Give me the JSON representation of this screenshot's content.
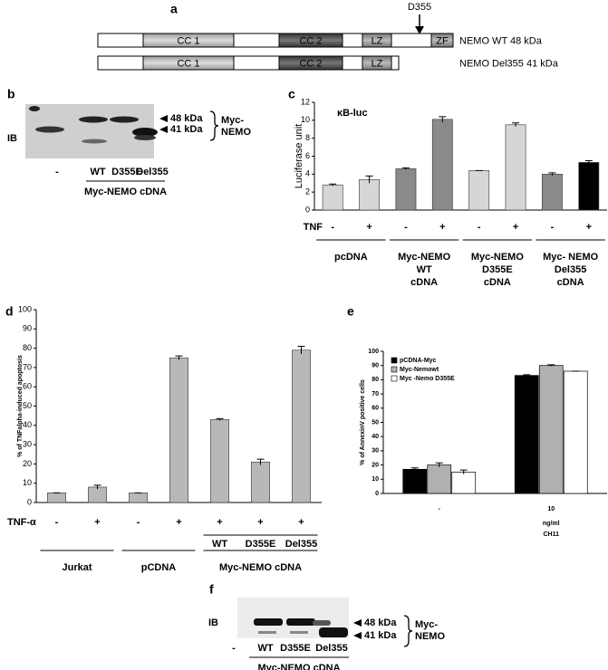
{
  "panel_a": {
    "label": "a",
    "site": "D355",
    "constructs": [
      {
        "name": "NEMO WT 48  kDa",
        "domains": [
          "CC 1",
          "CC 2",
          "LZ",
          "ZF"
        ]
      },
      {
        "name": "NEMO Del355 41 kDa",
        "domains": [
          "CC 1",
          "CC 2",
          "LZ"
        ]
      }
    ]
  },
  "panel_b": {
    "label": "b",
    "method": "IB",
    "markers": [
      "48 kDa",
      "41 kDa"
    ],
    "protein": [
      "Myc-",
      "NEMO"
    ],
    "lanes": [
      "-",
      "WT",
      "D355E",
      "Del355"
    ],
    "group": "Myc-NEMO cDNA"
  },
  "panel_f": {
    "label": "f",
    "method": "IB",
    "markers": [
      "48 kDa",
      "41 kDa"
    ],
    "protein": [
      "Myc-",
      "NEMO"
    ],
    "lanes": [
      "-",
      "WT",
      "D355E",
      "Del355"
    ],
    "group": "Myc-NEMO cDNA"
  },
  "chart_data": [
    {
      "panel": "c",
      "type": "bar",
      "title": "κB-luc",
      "y_label": "Luciferase unit",
      "ylim": [
        0,
        12
      ],
      "yticks": [
        0,
        2,
        4,
        6,
        8,
        10,
        12
      ],
      "row_label": "TNF",
      "categories": [
        "-",
        "+",
        "-",
        "+",
        "-",
        "+",
        "-",
        "+"
      ],
      "values": [
        2.8,
        3.4,
        4.6,
        10.1,
        4.4,
        9.5,
        4.0,
        5.3
      ],
      "errors": [
        0.1,
        0.4,
        0.1,
        0.3,
        0,
        0.2,
        0.15,
        0.2
      ],
      "colors": [
        "#d6d6d6",
        "#d6d6d6",
        "#8a8a8a",
        "#8a8a8a",
        "#d6d6d6",
        "#d6d6d6",
        "#8a8a8a",
        "#000000"
      ],
      "groups": [
        [
          "pcDNA"
        ],
        [
          "Myc-NEMO",
          "WT",
          "cDNA"
        ],
        [
          "Myc-NEMO",
          "D355E",
          "cDNA"
        ],
        [
          "Myc- NEMO",
          "Del355",
          "cDNA"
        ]
      ]
    },
    {
      "panel": "d",
      "type": "bar",
      "y_label": "% of TNFalpha-induced apoptosis",
      "ylim": [
        0,
        100
      ],
      "yticks": [
        0,
        10,
        20,
        30,
        40,
        50,
        60,
        70,
        80,
        90,
        100
      ],
      "row_label": "TNF-α",
      "categories": [
        "-",
        "+",
        "-",
        "+",
        "+",
        "+",
        "+"
      ],
      "values": [
        5,
        8,
        5,
        75,
        43,
        21,
        79
      ],
      "errors": [
        0,
        1,
        0,
        1,
        0.5,
        1.5,
        2
      ],
      "color": "#b8b8b8",
      "subgroups": [
        null,
        null,
        null,
        null,
        "WT",
        "D355E",
        "Del355"
      ],
      "groups": [
        [
          "Jurkat"
        ],
        [
          "pCDNA"
        ],
        [
          "Myc-NEMO cDNA"
        ]
      ]
    },
    {
      "panel": "e",
      "type": "grouped_bar",
      "y_label": "% of AnnexinV positive cells",
      "ylim": [
        0,
        100
      ],
      "yticks": [
        0,
        10,
        20,
        30,
        40,
        50,
        60,
        70,
        80,
        90,
        100
      ],
      "categories": [
        "-",
        "10"
      ],
      "x_label": [
        "ng/ml",
        "CH11"
      ],
      "legend": "top-left",
      "series": [
        {
          "name": "pCDNA-Myc",
          "color": "#000000",
          "values": [
            17,
            83
          ],
          "errors": [
            1,
            0.5
          ]
        },
        {
          "name": "Myc-Nemowt",
          "color": "#b0b0b0",
          "values": [
            20,
            90
          ],
          "errors": [
            1.5,
            0.5
          ]
        },
        {
          "name": "Myc -Nemo D355E",
          "color": "#ffffff",
          "values": [
            15,
            86
          ],
          "errors": [
            1.5,
            0
          ]
        }
      ]
    }
  ]
}
